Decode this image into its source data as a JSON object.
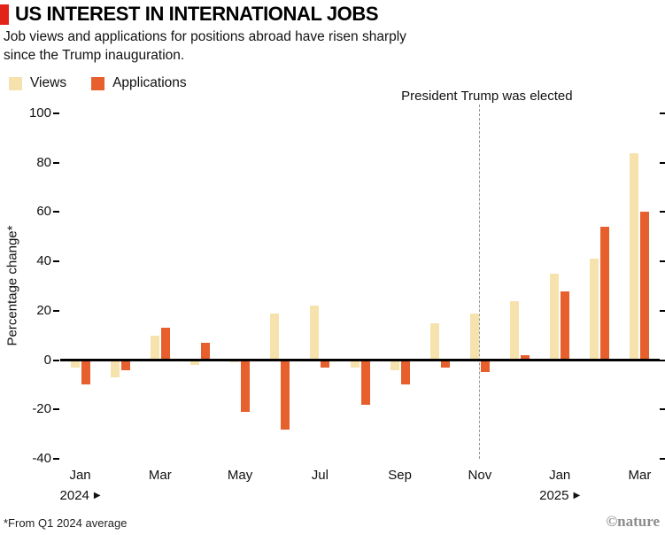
{
  "header": {
    "title": "US INTEREST IN INTERNATIONAL JOBS",
    "subtitle": "Job views and applications for positions abroad have risen sharply since the Trump inauguration."
  },
  "annotation": "President Trump was elected",
  "footnote": "*From Q1 2024 average",
  "brand": "©nature",
  "colors": {
    "accent_red": "#e2231a",
    "views": "#f6e2ad",
    "applications": "#e75f2c",
    "axis": "#000000",
    "dashed_line": "#9a9a9a",
    "brand_gray": "#8c8c8c"
  },
  "chart_data": {
    "type": "bar",
    "title": "US INTEREST IN INTERNATIONAL JOBS",
    "subtitle": "Job views and applications for positions abroad have risen sharply since the Trump inauguration.",
    "xlabel": "",
    "ylabel": "Percentage change*",
    "ylim": [
      -40,
      100
    ],
    "yticks": [
      100,
      80,
      60,
      40,
      20,
      0,
      -20,
      -40
    ],
    "grid": false,
    "legend_position": "top-left",
    "categories": [
      "Jan 2024",
      "Feb 2024",
      "Mar 2024",
      "Apr 2024",
      "May 2024",
      "Jun 2024",
      "Jul 2024",
      "Aug 2024",
      "Sep 2024",
      "Oct 2024",
      "Nov 2024",
      "Dec 2024",
      "Jan 2025",
      "Feb 2025",
      "Mar 2025"
    ],
    "series": [
      {
        "name": "Views",
        "color": "#f6e2ad",
        "values": [
          -3,
          -7,
          10,
          -2,
          -1,
          19,
          22,
          -3,
          -4,
          15,
          19,
          24,
          35,
          41,
          84
        ]
      },
      {
        "name": "Applications",
        "color": "#e75f2c",
        "values": [
          -10,
          -4,
          13,
          7,
          -21,
          -28,
          -3,
          -18,
          -10,
          -3,
          -5,
          2,
          28,
          54,
          60
        ]
      }
    ],
    "x_ticks": [
      {
        "index": 0,
        "label": "Jan"
      },
      {
        "index": 2,
        "label": "Mar"
      },
      {
        "index": 4,
        "label": "May"
      },
      {
        "index": 6,
        "label": "Jul"
      },
      {
        "index": 8,
        "label": "Sep"
      },
      {
        "index": 10,
        "label": "Nov"
      },
      {
        "index": 12,
        "label": "Jan"
      },
      {
        "index": 14,
        "label": "Mar"
      }
    ],
    "year_labels": [
      {
        "index": 0,
        "label": "2024",
        "arrow": "▶"
      },
      {
        "index": 12,
        "label": "2025",
        "arrow": "▶"
      }
    ],
    "annotation": {
      "text": "President Trump was elected",
      "at_index": 10
    }
  }
}
